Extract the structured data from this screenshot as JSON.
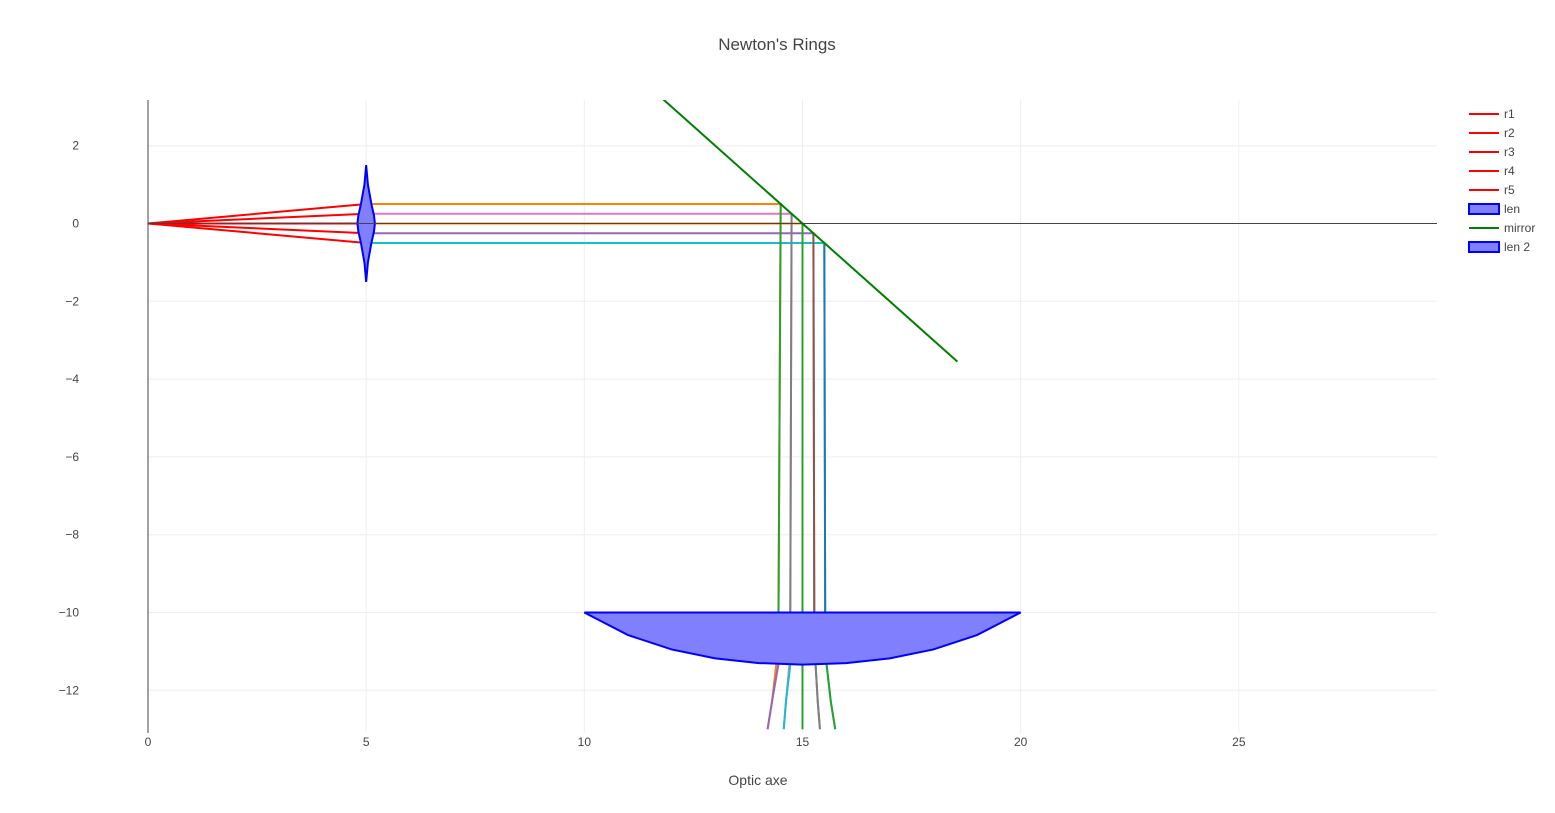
{
  "chart_data": {
    "type": "line",
    "title": "Newton's Rings",
    "xlabel": "Optic axe",
    "ylabel": "",
    "xlim": [
      -1.5,
      29.5
    ],
    "ylim": [
      -13.0,
      3.2
    ],
    "x_ticks": [
      0,
      5,
      10,
      15,
      20,
      25
    ],
    "x_tick_labels": [
      "0",
      "5",
      "10",
      "15",
      "20",
      "25"
    ],
    "y_ticks": [
      2,
      0,
      -2,
      -4,
      -6,
      -8,
      -10,
      -12
    ],
    "y_tick_labels": [
      "2",
      "0",
      "−2",
      "−4",
      "−6",
      "−8",
      "−10",
      "−12"
    ],
    "grid": true,
    "legend_position": "top-right",
    "series": [
      {
        "name": "r1",
        "color": "#ff0000",
        "x": [
          0,
          5
        ],
        "y": [
          0,
          0.5
        ]
      },
      {
        "name": "r2",
        "color": "#ff0000",
        "x": [
          0,
          5
        ],
        "y": [
          0,
          0.25
        ]
      },
      {
        "name": "r3",
        "color": "#ff0000",
        "x": [
          0,
          5
        ],
        "y": [
          0,
          0
        ]
      },
      {
        "name": "r4",
        "color": "#ff0000",
        "x": [
          0,
          5
        ],
        "y": [
          0,
          -0.25
        ]
      },
      {
        "name": "r5",
        "color": "#ff0000",
        "x": [
          0,
          5
        ],
        "y": [
          0,
          -0.5
        ]
      },
      {
        "name": "len",
        "color": "#0000ff",
        "fill": "#8080ff",
        "kind": "lens",
        "x": [
          5,
          4.96,
          4.88,
          4.82,
          4.8,
          4.82,
          4.88,
          4.96,
          5,
          5.04,
          5.12,
          5.18,
          5.2,
          5.18,
          5.12,
          5.04,
          5
        ],
        "y": [
          1.5,
          1.0,
          0.5,
          0.2,
          0,
          -0.2,
          -0.5,
          -1.0,
          -1.5,
          -1.0,
          -0.5,
          -0.2,
          0,
          0.2,
          0.5,
          1.0,
          1.5
        ]
      },
      {
        "name": "mirror",
        "color": "#008000",
        "x": [
          11.8,
          18.55
        ],
        "y": [
          3.2,
          -3.55
        ]
      },
      {
        "name": "len 2",
        "color": "#0000ff",
        "fill": "#8080ff",
        "kind": "lens",
        "x": [
          10,
          11,
          12,
          13,
          14,
          15,
          16,
          17,
          18,
          19,
          20,
          10
        ],
        "y": [
          -10,
          -10.58,
          -10.95,
          -11.18,
          -11.3,
          -11.34,
          -11.3,
          -11.18,
          -10.95,
          -10.58,
          -10,
          -10
        ]
      }
    ],
    "unlabeled_traces": [
      {
        "color": "#ff7f0e",
        "x": [
          5,
          14.5,
          14.45,
          14.4,
          14.3,
          14.2
        ],
        "y": [
          0.5,
          0.5,
          -10,
          -11.32,
          -12.3,
          -13.0
        ]
      },
      {
        "color": "#e377c2",
        "x": [
          5,
          14.75,
          14.72,
          14.7,
          14.62,
          14.57
        ],
        "y": [
          0.25,
          0.25,
          -10,
          -11.34,
          -12.3,
          -13.0
        ]
      },
      {
        "color": "#ff7f0e",
        "x": [
          5,
          15,
          15,
          15,
          15,
          15
        ],
        "y": [
          0,
          0,
          -10,
          -11.34,
          -12.3,
          -13.0
        ]
      },
      {
        "color": "#9467bd",
        "x": [
          5,
          15.25,
          15.27,
          15.3,
          15.35,
          15.4
        ],
        "y": [
          -0.25,
          -0.25,
          -10,
          -11.34,
          -12.3,
          -13.0
        ]
      },
      {
        "color": "#17becf",
        "x": [
          5,
          15.5,
          15.52,
          15.55,
          15.65,
          15.75
        ],
        "y": [
          -0.5,
          -0.5,
          -10,
          -11.32,
          -12.3,
          -13.0
        ]
      },
      {
        "color": "#2ca02c",
        "x": [
          14.5,
          14.45
        ],
        "y": [
          0.5,
          -10
        ]
      },
      {
        "color": "#7f7f7f",
        "x": [
          14.75,
          14.72
        ],
        "y": [
          0.25,
          -10
        ]
      },
      {
        "color": "#2ca02c",
        "x": [
          15,
          15
        ],
        "y": [
          0,
          -10
        ]
      },
      {
        "color": "#8c564b",
        "x": [
          15.25,
          15.27
        ],
        "y": [
          -0.25,
          -10
        ]
      },
      {
        "color": "#1f77b4",
        "x": [
          15.5,
          15.52
        ],
        "y": [
          -0.5,
          -10
        ]
      },
      {
        "color": "#9467bd",
        "x": [
          14.45,
          14.3,
          14.2
        ],
        "y": [
          -11.32,
          -12.3,
          -13.0
        ]
      },
      {
        "color": "#17becf",
        "x": [
          14.72,
          14.62,
          14.57
        ],
        "y": [
          -11.34,
          -12.3,
          -13.0
        ]
      },
      {
        "color": "#2ca02c",
        "x": [
          15,
          15,
          15
        ],
        "y": [
          -11.34,
          -12.3,
          -13.0
        ]
      },
      {
        "color": "#7f7f7f",
        "x": [
          15.3,
          15.35,
          15.4
        ],
        "y": [
          -11.34,
          -12.3,
          -13.0
        ]
      },
      {
        "color": "#2ca02c",
        "x": [
          15.55,
          15.65,
          15.75
        ],
        "y": [
          -11.32,
          -12.3,
          -13.0
        ]
      }
    ]
  }
}
